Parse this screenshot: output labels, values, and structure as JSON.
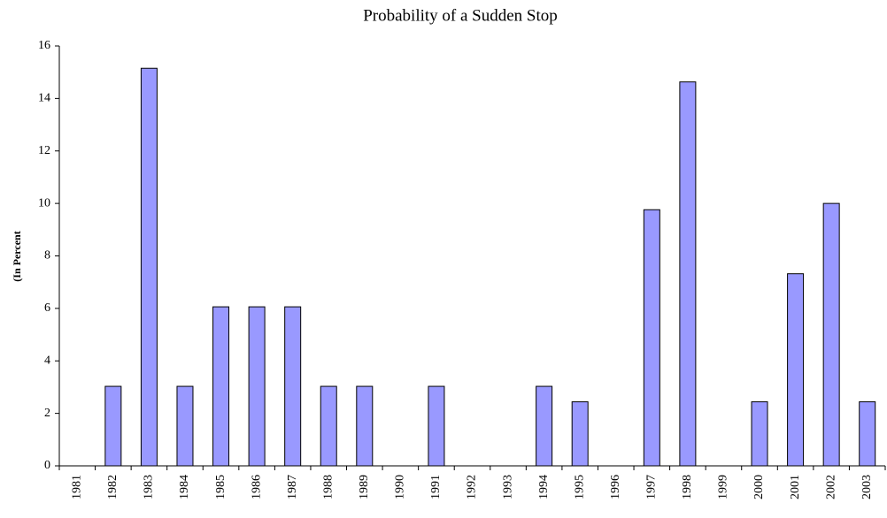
{
  "chart_data": {
    "type": "bar",
    "title": "Probability of a Sudden Stop",
    "y_label": "(In Percent",
    "categories": [
      "1981",
      "1982",
      "1983",
      "1984",
      "1985",
      "1986",
      "1987",
      "1988",
      "1989",
      "1990",
      "1991",
      "1992",
      "1993",
      "1994",
      "1995",
      "1996",
      "1997",
      "1998",
      "1999",
      "2000",
      "2001",
      "2002",
      "2003"
    ],
    "values": [
      0,
      3.03,
      15.15,
      3.03,
      6.06,
      6.06,
      6.06,
      3.03,
      3.03,
      0,
      3.03,
      0,
      0,
      3.03,
      2.44,
      0,
      9.76,
      14.63,
      0,
      2.44,
      7.32,
      10,
      2.44
    ],
    "color": "#9999ff",
    "ylim": [
      0,
      16
    ],
    "yticks": [
      0,
      2,
      4,
      6,
      8,
      10,
      12,
      14,
      16
    ],
    "grid": false
  }
}
